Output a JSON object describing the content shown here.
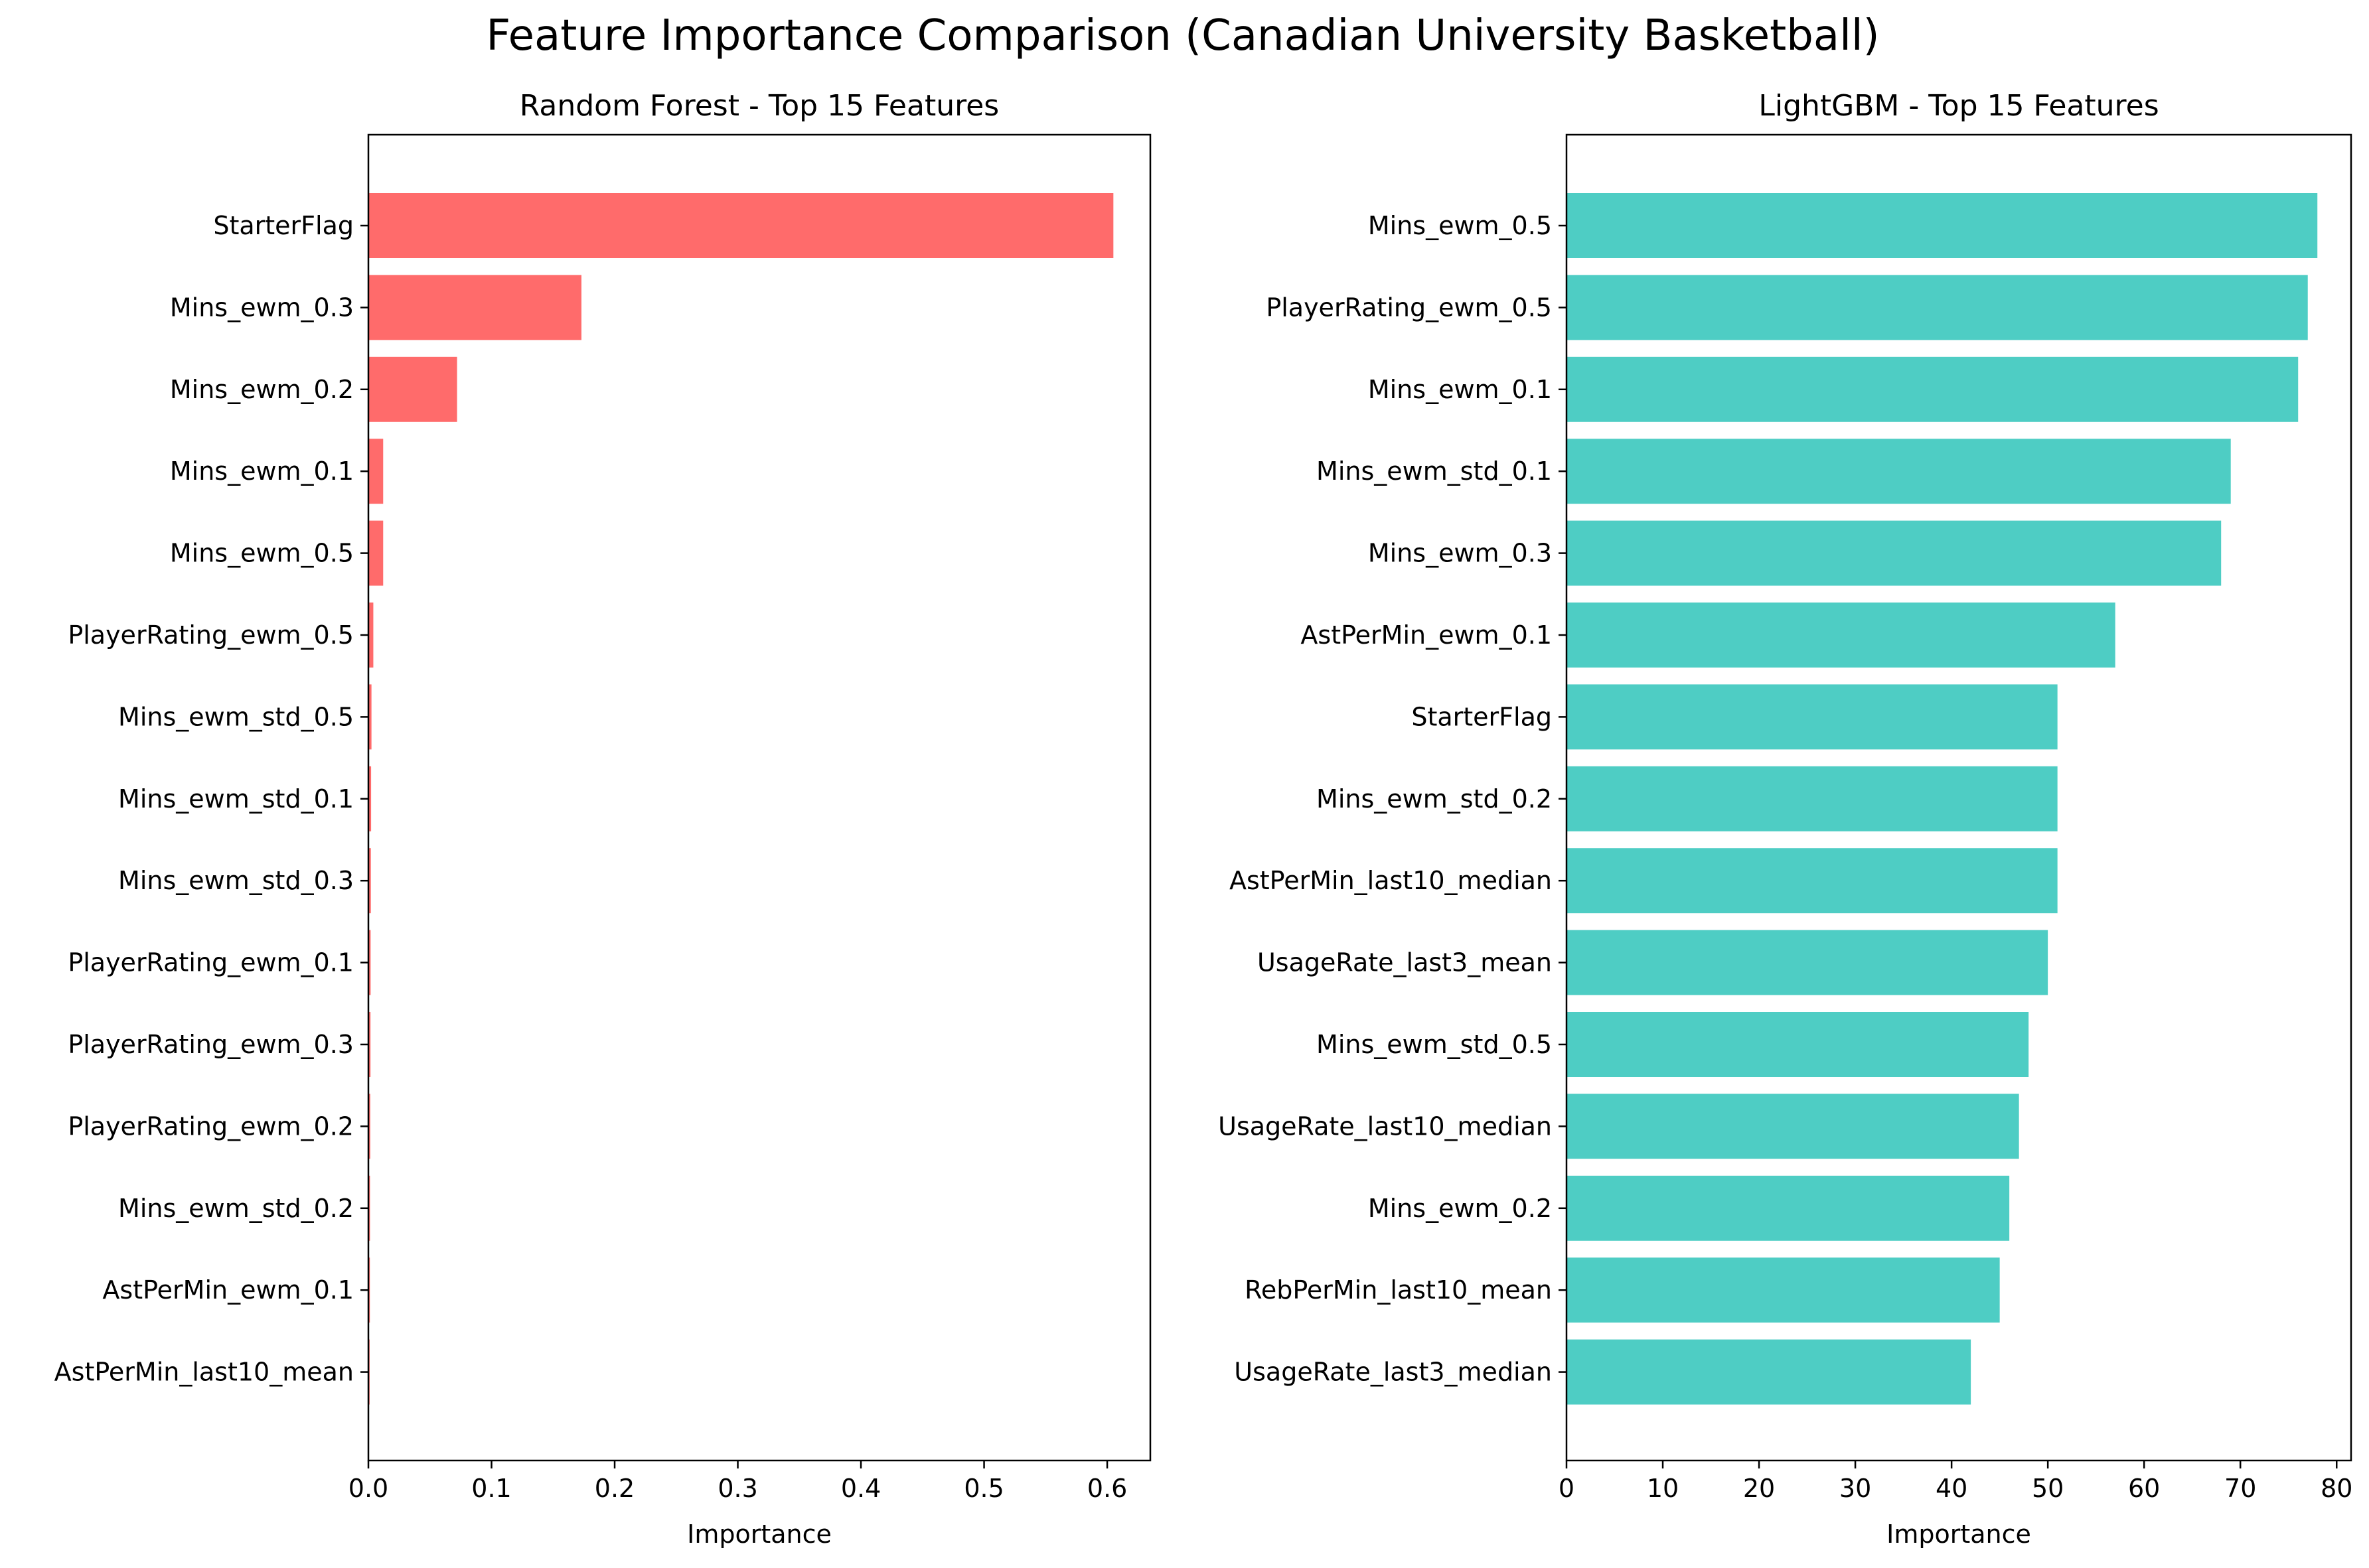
{
  "figure": {
    "suptitle": "Feature Importance Comparison (Canadian University Basketball)"
  },
  "chart_data": [
    {
      "type": "bar",
      "orientation": "horizontal",
      "title": "Random Forest - Top 15 Features",
      "xlabel": "Importance",
      "ylabel": "",
      "color": "#ff6b6b",
      "xlim": [
        0,
        0.635
      ],
      "xticks": [
        0.0,
        0.1,
        0.2,
        0.3,
        0.4,
        0.5,
        0.6
      ],
      "xtick_labels": [
        "0.0",
        "0.1",
        "0.2",
        "0.3",
        "0.4",
        "0.5",
        "0.6"
      ],
      "grid": false,
      "categories": [
        "StarterFlag",
        "Mins_ewm_0.3",
        "Mins_ewm_0.2",
        "Mins_ewm_0.1",
        "Mins_ewm_0.5",
        "PlayerRating_ewm_0.5",
        "Mins_ewm_std_0.5",
        "Mins_ewm_std_0.1",
        "Mins_ewm_std_0.3",
        "PlayerRating_ewm_0.1",
        "PlayerRating_ewm_0.3",
        "PlayerRating_ewm_0.2",
        "Mins_ewm_std_0.2",
        "AstPerMin_ewm_0.1",
        "AstPerMin_last10_mean"
      ],
      "values": [
        0.605,
        0.173,
        0.072,
        0.012,
        0.012,
        0.004,
        0.0025,
        0.0022,
        0.002,
        0.0018,
        0.0017,
        0.0015,
        0.0013,
        0.0012,
        0.001
      ]
    },
    {
      "type": "bar",
      "orientation": "horizontal",
      "title": "LightGBM - Top 15 Features",
      "xlabel": "Importance",
      "ylabel": "",
      "color": "#4ecdc4",
      "xlim": [
        0,
        81.5
      ],
      "xticks": [
        0,
        10,
        20,
        30,
        40,
        50,
        60,
        70,
        80
      ],
      "xtick_labels": [
        "0",
        "10",
        "20",
        "30",
        "40",
        "50",
        "60",
        "70",
        "80"
      ],
      "grid": false,
      "categories": [
        "Mins_ewm_0.5",
        "PlayerRating_ewm_0.5",
        "Mins_ewm_0.1",
        "Mins_ewm_std_0.1",
        "Mins_ewm_0.3",
        "AstPerMin_ewm_0.1",
        "StarterFlag",
        "Mins_ewm_std_0.2",
        "AstPerMin_last10_median",
        "UsageRate_last3_mean",
        "Mins_ewm_std_0.5",
        "UsageRate_last10_median",
        "Mins_ewm_0.2",
        "RebPerMin_last10_mean",
        "UsageRate_last3_median"
      ],
      "values": [
        78,
        77,
        76,
        69,
        68,
        57,
        51,
        51,
        51,
        50,
        48,
        47,
        46,
        45,
        42
      ]
    }
  ]
}
